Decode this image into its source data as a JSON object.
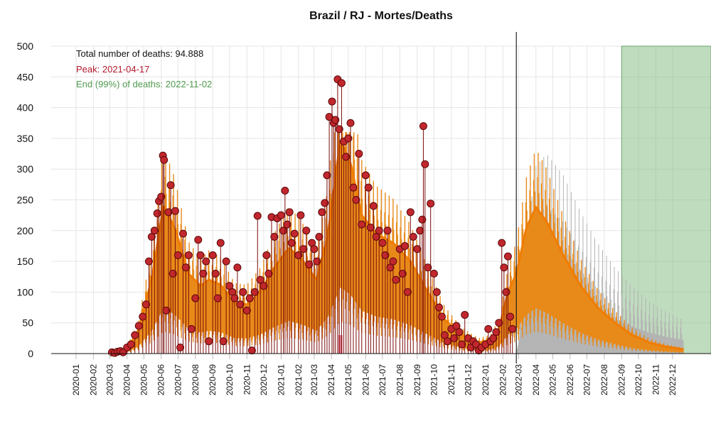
{
  "chart_data": {
    "type": "line",
    "title": "Brazil / RJ - Mortes/Deaths",
    "xlabel": "",
    "ylabel": "",
    "ylim": [
      0,
      500
    ],
    "yticks": [
      0,
      50,
      100,
      150,
      200,
      250,
      300,
      350,
      400,
      450,
      500
    ],
    "xticks": [
      "2020-01",
      "2020-02",
      "2020-03",
      "2020-04",
      "2020-05",
      "2020-06",
      "2020-07",
      "2020-08",
      "2020-09",
      "2020-10",
      "2020-11",
      "2020-12",
      "2021-01",
      "2021-02",
      "2021-03",
      "2021-04",
      "2021-05",
      "2021-06",
      "2021-07",
      "2021-08",
      "2021-09",
      "2021-10",
      "2021-11",
      "2021-12",
      "2022-01",
      "2022-02",
      "2022-03",
      "2022-04",
      "2022-05",
      "2022-06",
      "2022-07",
      "2022-08",
      "2022-09",
      "2022-10",
      "2022-11",
      "2022-12"
    ],
    "grid": true,
    "annotations": {
      "total": "Total number of deaths: 94.888",
      "peak": "Peak: 2021-04-17",
      "end": "End (99%) of deaths: 2022-11-02"
    },
    "today_line": "2022-02-25",
    "end_region": {
      "from": "2022-09",
      "to": "beyond 2022-12"
    },
    "peak_bar": "2021-04-17",
    "series": [
      {
        "style": "fitted-orange",
        "smooth_points": [
          {
            "x": "2020-03-10",
            "y": 0
          },
          {
            "x": "2020-04-01",
            "y": 8
          },
          {
            "x": "2020-04-20",
            "y": 35
          },
          {
            "x": "2020-05-15",
            "y": 120
          },
          {
            "x": "2020-06-05",
            "y": 240
          },
          {
            "x": "2020-06-25",
            "y": 205
          },
          {
            "x": "2020-07-20",
            "y": 130
          },
          {
            "x": "2020-08-10",
            "y": 110
          },
          {
            "x": "2020-08-25",
            "y": 120
          },
          {
            "x": "2020-09-15",
            "y": 112
          },
          {
            "x": "2020-10-10",
            "y": 82
          },
          {
            "x": "2020-11-01",
            "y": 80
          },
          {
            "x": "2020-11-25",
            "y": 100
          },
          {
            "x": "2020-12-20",
            "y": 140
          },
          {
            "x": "2021-01-15",
            "y": 172
          },
          {
            "x": "2021-02-10",
            "y": 150
          },
          {
            "x": "2021-03-05",
            "y": 120
          },
          {
            "x": "2021-03-25",
            "y": 190
          },
          {
            "x": "2021-04-17",
            "y": 348
          },
          {
            "x": "2021-05-05",
            "y": 310
          },
          {
            "x": "2021-05-25",
            "y": 225
          },
          {
            "x": "2021-06-20",
            "y": 195
          },
          {
            "x": "2021-07-20",
            "y": 180
          },
          {
            "x": "2021-08-20",
            "y": 150
          },
          {
            "x": "2021-09-20",
            "y": 100
          },
          {
            "x": "2021-10-20",
            "y": 55
          },
          {
            "x": "2021-11-20",
            "y": 30
          },
          {
            "x": "2021-12-20",
            "y": 18
          },
          {
            "x": "2022-01-10",
            "y": 22
          },
          {
            "x": "2022-01-25",
            "y": 40
          },
          {
            "x": "2022-02-10",
            "y": 100
          },
          {
            "x": "2022-02-25",
            "y": 130
          },
          {
            "x": "2022-03-15",
            "y": 205
          },
          {
            "x": "2022-04-01",
            "y": 238
          },
          {
            "x": "2022-04-20",
            "y": 215
          },
          {
            "x": "2022-05-20",
            "y": 160
          },
          {
            "x": "2022-06-20",
            "y": 110
          },
          {
            "x": "2022-07-20",
            "y": 75
          },
          {
            "x": "2022-08-20",
            "y": 50
          },
          {
            "x": "2022-09-20",
            "y": 30
          },
          {
            "x": "2022-10-20",
            "y": 18
          },
          {
            "x": "2022-11-20",
            "y": 11
          },
          {
            "x": "2022-12-20",
            "y": 7
          }
        ]
      },
      {
        "style": "projection-gray",
        "smooth_points": [
          {
            "x": "2022-02-25",
            "y": 0
          },
          {
            "x": "2022-03-10",
            "y": 150
          },
          {
            "x": "2022-04-01",
            "y": 305
          },
          {
            "x": "2022-04-20",
            "y": 325
          },
          {
            "x": "2022-05-20",
            "y": 290
          },
          {
            "x": "2022-06-20",
            "y": 230
          },
          {
            "x": "2022-07-20",
            "y": 180
          },
          {
            "x": "2022-08-20",
            "y": 140
          },
          {
            "x": "2022-09-20",
            "y": 110
          },
          {
            "x": "2022-10-20",
            "y": 85
          },
          {
            "x": "2022-11-20",
            "y": 68
          },
          {
            "x": "2022-12-20",
            "y": 55
          }
        ]
      },
      {
        "style": "observed-red-points",
        "points": [
          {
            "x": "2020-03-05",
            "y": 2
          },
          {
            "x": "2020-03-10",
            "y": 1
          },
          {
            "x": "2020-03-15",
            "y": 3
          },
          {
            "x": "2020-03-20",
            "y": 4
          },
          {
            "x": "2020-03-25",
            "y": 2
          },
          {
            "x": "2020-04-01",
            "y": 10
          },
          {
            "x": "2020-04-08",
            "y": 15
          },
          {
            "x": "2020-04-15",
            "y": 30
          },
          {
            "x": "2020-04-22",
            "y": 45
          },
          {
            "x": "2020-04-29",
            "y": 60
          },
          {
            "x": "2020-05-05",
            "y": 80
          },
          {
            "x": "2020-05-10",
            "y": 150
          },
          {
            "x": "2020-05-15",
            "y": 190
          },
          {
            "x": "2020-05-20",
            "y": 200
          },
          {
            "x": "2020-05-25",
            "y": 228
          },
          {
            "x": "2020-05-28",
            "y": 248
          },
          {
            "x": "2020-06-01",
            "y": 255
          },
          {
            "x": "2020-06-04",
            "y": 322
          },
          {
            "x": "2020-06-06",
            "y": 315
          },
          {
            "x": "2020-06-10",
            "y": 70
          },
          {
            "x": "2020-06-14",
            "y": 230
          },
          {
            "x": "2020-06-18",
            "y": 274
          },
          {
            "x": "2020-06-22",
            "y": 130
          },
          {
            "x": "2020-06-26",
            "y": 232
          },
          {
            "x": "2020-07-01",
            "y": 160
          },
          {
            "x": "2020-07-05",
            "y": 10
          },
          {
            "x": "2020-07-10",
            "y": 195
          },
          {
            "x": "2020-07-15",
            "y": 140
          },
          {
            "x": "2020-07-20",
            "y": 160
          },
          {
            "x": "2020-07-25",
            "y": 40
          },
          {
            "x": "2020-08-01",
            "y": 90
          },
          {
            "x": "2020-08-06",
            "y": 185
          },
          {
            "x": "2020-08-10",
            "y": 160
          },
          {
            "x": "2020-08-15",
            "y": 130
          },
          {
            "x": "2020-08-20",
            "y": 150
          },
          {
            "x": "2020-08-25",
            "y": 20
          },
          {
            "x": "2020-09-01",
            "y": 160
          },
          {
            "x": "2020-09-06",
            "y": 130
          },
          {
            "x": "2020-09-10",
            "y": 90
          },
          {
            "x": "2020-09-15",
            "y": 180
          },
          {
            "x": "2020-09-20",
            "y": 20
          },
          {
            "x": "2020-09-25",
            "y": 150
          },
          {
            "x": "2020-10-01",
            "y": 110
          },
          {
            "x": "2020-10-06",
            "y": 100
          },
          {
            "x": "2020-10-10",
            "y": 90
          },
          {
            "x": "2020-10-15",
            "y": 140
          },
          {
            "x": "2020-10-20",
            "y": 80
          },
          {
            "x": "2020-10-25",
            "y": 100
          },
          {
            "x": "2020-11-01",
            "y": 70
          },
          {
            "x": "2020-11-06",
            "y": 90
          },
          {
            "x": "2020-11-10",
            "y": 5
          },
          {
            "x": "2020-11-15",
            "y": 100
          },
          {
            "x": "2020-11-20",
            "y": 224
          },
          {
            "x": "2020-11-25",
            "y": 120
          },
          {
            "x": "2020-12-01",
            "y": 110
          },
          {
            "x": "2020-12-06",
            "y": 160
          },
          {
            "x": "2020-12-10",
            "y": 130
          },
          {
            "x": "2020-12-15",
            "y": 222
          },
          {
            "x": "2020-12-20",
            "y": 190
          },
          {
            "x": "2020-12-25",
            "y": 220
          },
          {
            "x": "2021-01-01",
            "y": 225
          },
          {
            "x": "2021-01-05",
            "y": 200
          },
          {
            "x": "2021-01-08",
            "y": 265
          },
          {
            "x": "2021-01-12",
            "y": 210
          },
          {
            "x": "2021-01-16",
            "y": 230
          },
          {
            "x": "2021-01-20",
            "y": 180
          },
          {
            "x": "2021-01-25",
            "y": 195
          },
          {
            "x": "2021-02-01",
            "y": 160
          },
          {
            "x": "2021-02-05",
            "y": 225
          },
          {
            "x": "2021-02-10",
            "y": 170
          },
          {
            "x": "2021-02-15",
            "y": 200
          },
          {
            "x": "2021-02-20",
            "y": 145
          },
          {
            "x": "2021-02-25",
            "y": 180
          },
          {
            "x": "2021-03-01",
            "y": 170
          },
          {
            "x": "2021-03-06",
            "y": 150
          },
          {
            "x": "2021-03-10",
            "y": 190
          },
          {
            "x": "2021-03-15",
            "y": 230
          },
          {
            "x": "2021-03-20",
            "y": 245
          },
          {
            "x": "2021-03-24",
            "y": 290
          },
          {
            "x": "2021-03-28",
            "y": 385
          },
          {
            "x": "2021-04-02",
            "y": 410
          },
          {
            "x": "2021-04-05",
            "y": 375
          },
          {
            "x": "2021-04-08",
            "y": 380
          },
          {
            "x": "2021-04-12",
            "y": 446
          },
          {
            "x": "2021-04-15",
            "y": 365
          },
          {
            "x": "2021-04-19",
            "y": 440
          },
          {
            "x": "2021-04-23",
            "y": 345
          },
          {
            "x": "2021-04-27",
            "y": 320
          },
          {
            "x": "2021-05-01",
            "y": 350
          },
          {
            "x": "2021-05-05",
            "y": 375
          },
          {
            "x": "2021-05-10",
            "y": 270
          },
          {
            "x": "2021-05-15",
            "y": 250
          },
          {
            "x": "2021-05-20",
            "y": 325
          },
          {
            "x": "2021-05-25",
            "y": 210
          },
          {
            "x": "2021-06-01",
            "y": 290
          },
          {
            "x": "2021-06-06",
            "y": 270
          },
          {
            "x": "2021-06-10",
            "y": 205
          },
          {
            "x": "2021-06-15",
            "y": 240
          },
          {
            "x": "2021-06-20",
            "y": 190
          },
          {
            "x": "2021-06-25",
            "y": 200
          },
          {
            "x": "2021-07-01",
            "y": 180
          },
          {
            "x": "2021-07-06",
            "y": 160
          },
          {
            "x": "2021-07-10",
            "y": 200
          },
          {
            "x": "2021-07-15",
            "y": 140
          },
          {
            "x": "2021-07-20",
            "y": 150
          },
          {
            "x": "2021-07-25",
            "y": 120
          },
          {
            "x": "2021-08-01",
            "y": 170
          },
          {
            "x": "2021-08-06",
            "y": 130
          },
          {
            "x": "2021-08-10",
            "y": 175
          },
          {
            "x": "2021-08-15",
            "y": 100
          },
          {
            "x": "2021-08-20",
            "y": 230
          },
          {
            "x": "2021-08-25",
            "y": 190
          },
          {
            "x": "2021-09-01",
            "y": 170
          },
          {
            "x": "2021-09-06",
            "y": 200
          },
          {
            "x": "2021-09-10",
            "y": 218
          },
          {
            "x": "2021-09-12",
            "y": 370
          },
          {
            "x": "2021-09-15",
            "y": 308
          },
          {
            "x": "2021-09-20",
            "y": 140
          },
          {
            "x": "2021-09-25",
            "y": 244
          },
          {
            "x": "2021-10-01",
            "y": 130
          },
          {
            "x": "2021-10-06",
            "y": 100
          },
          {
            "x": "2021-10-10",
            "y": 75
          },
          {
            "x": "2021-10-15",
            "y": 60
          },
          {
            "x": "2021-10-20",
            "y": 30
          },
          {
            "x": "2021-10-25",
            "y": 20
          },
          {
            "x": "2021-11-01",
            "y": 40
          },
          {
            "x": "2021-11-06",
            "y": 25
          },
          {
            "x": "2021-11-10",
            "y": 45
          },
          {
            "x": "2021-11-15",
            "y": 35
          },
          {
            "x": "2021-11-20",
            "y": 15
          },
          {
            "x": "2021-11-25",
            "y": 63
          },
          {
            "x": "2021-12-01",
            "y": 25
          },
          {
            "x": "2021-12-06",
            "y": 10
          },
          {
            "x": "2021-12-10",
            "y": 20
          },
          {
            "x": "2021-12-15",
            "y": 15
          },
          {
            "x": "2021-12-20",
            "y": 5
          },
          {
            "x": "2021-12-25",
            "y": 10
          },
          {
            "x": "2022-01-01",
            "y": 15
          },
          {
            "x": "2022-01-06",
            "y": 40
          },
          {
            "x": "2022-01-10",
            "y": 20
          },
          {
            "x": "2022-01-15",
            "y": 25
          },
          {
            "x": "2022-01-20",
            "y": 35
          },
          {
            "x": "2022-01-25",
            "y": 50
          },
          {
            "x": "2022-01-30",
            "y": 180
          },
          {
            "x": "2022-02-03",
            "y": 140
          },
          {
            "x": "2022-02-07",
            "y": 100
          },
          {
            "x": "2022-02-10",
            "y": 158
          },
          {
            "x": "2022-02-14",
            "y": 60
          },
          {
            "x": "2022-02-18",
            "y": 40
          }
        ]
      }
    ]
  }
}
